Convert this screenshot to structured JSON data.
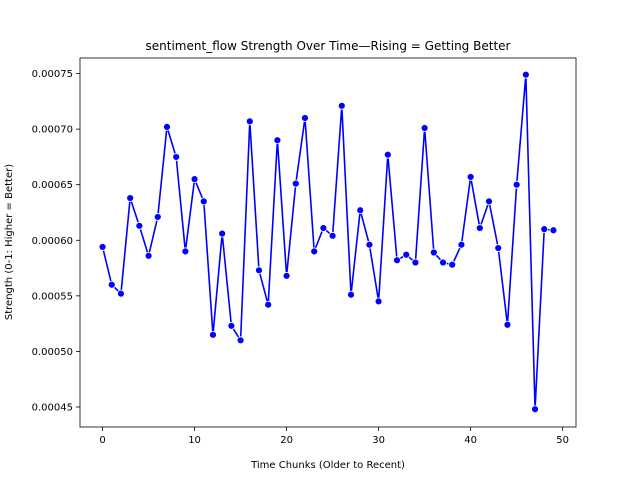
{
  "chart_data": {
    "type": "line",
    "title": "sentiment_flow Strength Over Time—Rising = Getting Better",
    "xlabel": "Time Chunks (Older to Recent)",
    "ylabel": "Strength (0-1: Higher = Better)",
    "xlim": [
      -2.45,
      51.45
    ],
    "ylim": [
      0.000432,
      0.000764
    ],
    "xticks": [
      0,
      10,
      20,
      30,
      40,
      50
    ],
    "xtick_labels": [
      "0",
      "10",
      "20",
      "30",
      "40",
      "50"
    ],
    "yticks": [
      0.00045,
      0.0005,
      0.00055,
      0.0006,
      0.00065,
      0.0007,
      0.00075
    ],
    "ytick_labels": [
      "0.00045",
      "0.00050",
      "0.00055",
      "0.00060",
      "0.00065",
      "0.00070",
      "0.00075"
    ],
    "grid": false,
    "series": [
      {
        "color": "#0000ff",
        "marker": "circle",
        "x": [
          0,
          1,
          2,
          3,
          4,
          5,
          6,
          7,
          8,
          9,
          10,
          11,
          12,
          13,
          14,
          15,
          16,
          17,
          18,
          19,
          20,
          21,
          22,
          23,
          24,
          25,
          26,
          27,
          28,
          29,
          30,
          31,
          32,
          33,
          34,
          35,
          36,
          37,
          38,
          39,
          40,
          41,
          42,
          43,
          44,
          45,
          46,
          47,
          48,
          49
        ],
        "values": [
          0.000594,
          0.00056,
          0.000552,
          0.000638,
          0.000613,
          0.000586,
          0.000621,
          0.000702,
          0.000675,
          0.00059,
          0.000655,
          0.000635,
          0.000515,
          0.000606,
          0.000523,
          0.00051,
          0.000707,
          0.000573,
          0.000542,
          0.00069,
          0.000568,
          0.000651,
          0.00071,
          0.00059,
          0.000611,
          0.000604,
          0.000721,
          0.000551,
          0.000627,
          0.000596,
          0.000545,
          0.000677,
          0.000582,
          0.000587,
          0.00058,
          0.000701,
          0.000589,
          0.00058,
          0.000578,
          0.000596,
          0.000657,
          0.000611,
          0.000635,
          0.000593,
          0.000524,
          0.00065,
          0.000749,
          0.000448,
          0.00061,
          0.000609
        ]
      }
    ]
  }
}
